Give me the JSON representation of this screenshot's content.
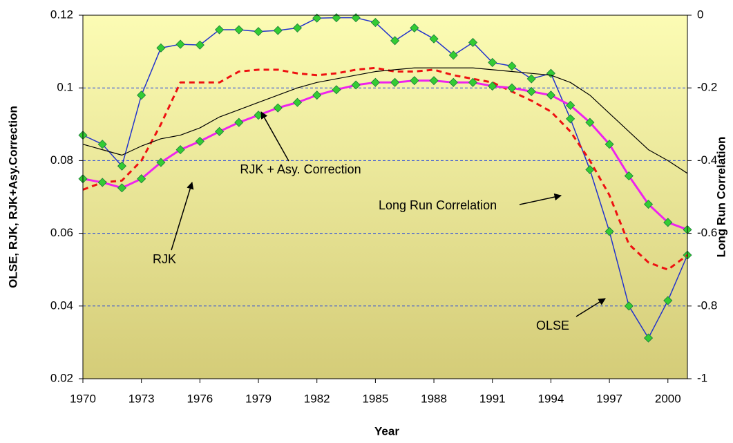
{
  "chart_data": {
    "type": "line",
    "xlabel": "Year",
    "ylabel": "OLSE, RJK, RJK+Asy.Correction",
    "y2label": "Long Run Correlation",
    "x": [
      1970,
      1971,
      1972,
      1973,
      1974,
      1975,
      1976,
      1977,
      1978,
      1979,
      1980,
      1981,
      1982,
      1983,
      1984,
      1985,
      1986,
      1987,
      1988,
      1989,
      1990,
      1991,
      1992,
      1993,
      1994,
      1995,
      1996,
      1997,
      1998,
      1999,
      2000,
      2001
    ],
    "xlim": [
      1970,
      2001
    ],
    "xticks": [
      1970,
      1973,
      1976,
      1979,
      1982,
      1985,
      1988,
      1991,
      1994,
      1997,
      2000
    ],
    "ylim": [
      0.02,
      0.12
    ],
    "yticks": [
      0.02,
      0.04,
      0.06,
      0.08,
      0.1,
      0.12
    ],
    "y2lim": [
      -1,
      0
    ],
    "y2ticks": [
      -1,
      -0.8,
      -0.6,
      -0.4,
      -0.2,
      0
    ],
    "grid": true,
    "series": [
      {
        "name": "OLSE",
        "color": "#2233cc",
        "marker_color": "#33cc33",
        "marker": true,
        "dash": false,
        "width": 1.5,
        "values": [
          0.087,
          0.0845,
          0.0785,
          0.098,
          0.111,
          0.112,
          0.1118,
          0.116,
          0.116,
          0.1155,
          0.1158,
          0.1165,
          0.1192,
          0.1193,
          0.1193,
          0.118,
          0.113,
          0.1165,
          0.1135,
          0.109,
          0.1125,
          0.107,
          0.106,
          0.1025,
          0.104,
          0.0915,
          0.0775,
          0.0605,
          0.04,
          0.0312,
          0.0415,
          0.054
        ]
      },
      {
        "name": "RJK + Asy. Correction",
        "color": "#ee1111",
        "marker": false,
        "dash": true,
        "width": 3,
        "values": [
          0.072,
          0.074,
          0.0745,
          0.08,
          0.09,
          0.1015,
          0.1015,
          0.1015,
          0.1045,
          0.105,
          0.105,
          0.104,
          0.1035,
          0.104,
          0.105,
          0.1055,
          0.1045,
          0.1045,
          0.105,
          0.1035,
          0.1025,
          0.1015,
          0.099,
          0.0965,
          0.0935,
          0.088,
          0.08,
          0.0705,
          0.057,
          0.052,
          0.05,
          0.054
        ]
      },
      {
        "name": "RJK",
        "color": "#ee22ee",
        "marker_color": "#33cc33",
        "marker": true,
        "dash": false,
        "width": 3,
        "values": [
          0.075,
          0.074,
          0.0725,
          0.075,
          0.0795,
          0.083,
          0.0853,
          0.088,
          0.0905,
          0.0925,
          0.0945,
          0.096,
          0.098,
          0.0995,
          0.1008,
          0.1015,
          0.1015,
          0.102,
          0.102,
          0.1015,
          0.1015,
          0.1005,
          0.1,
          0.099,
          0.098,
          0.0952,
          0.0905,
          0.0845,
          0.0758,
          0.068,
          0.063,
          0.061
        ]
      },
      {
        "name": "Long Run Correlation",
        "color": "#000000",
        "marker": false,
        "dash": false,
        "width": 1.2,
        "axis": "y2",
        "values": [
          -0.355,
          -0.37,
          -0.385,
          -0.36,
          -0.34,
          -0.33,
          -0.31,
          -0.28,
          -0.26,
          -0.24,
          -0.22,
          -0.2,
          -0.185,
          -0.175,
          -0.165,
          -0.155,
          -0.15,
          -0.145,
          -0.145,
          -0.145,
          -0.145,
          -0.15,
          -0.155,
          -0.16,
          -0.165,
          -0.185,
          -0.22,
          -0.27,
          -0.32,
          -0.37,
          -0.4,
          -0.435
        ]
      }
    ]
  }
}
